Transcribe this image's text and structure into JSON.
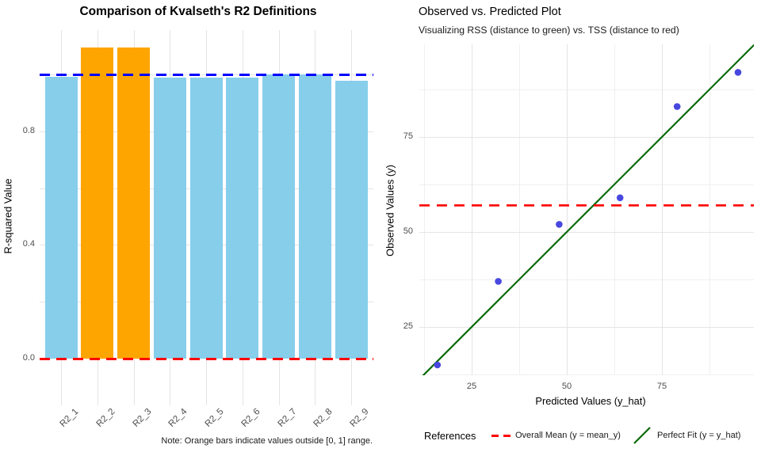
{
  "figure": {
    "background": "#FFFFFF"
  },
  "chart_data": [
    {
      "type": "bar",
      "title": "Comparison of Kvalseth's R2 Definitions",
      "ylabel": "R-squared Value",
      "xlabel": "",
      "caption": "Note: Orange bars indicate values outside [0, 1] range.",
      "categories": [
        "R2_1",
        "R2_2",
        "R2_3",
        "R2_4",
        "R2_5",
        "R2_6",
        "R2_7",
        "R2_8",
        "R2_9"
      ],
      "values": [
        0.993,
        1.095,
        1.095,
        0.99,
        0.988,
        0.988,
        1.0,
        1.0,
        0.978
      ],
      "outlier_indices": [
        1,
        2
      ],
      "yticks": [
        0.0,
        0.4,
        0.8
      ],
      "grid_y": [
        0.2,
        0.4,
        0.6,
        0.8,
        1.0
      ],
      "ylim": [
        -0.16,
        1.15
      ],
      "grid": true,
      "legend": false,
      "reference_lines": [
        {
          "y": 1.0,
          "style": "dashed",
          "color": "#0000FF",
          "meaning": "upper bound of [0,1]"
        },
        {
          "y": 0.0,
          "style": "dashed",
          "color": "#FF0000",
          "meaning": "lower bound of [0,1]"
        }
      ],
      "colors": {
        "bar": "#87CEEB",
        "bar_outlier": "#FFA500",
        "grid": "#E4E4E4",
        "tick_text": "#4D4D4D"
      }
    },
    {
      "type": "scatter",
      "title": "Observed vs. Predicted Plot",
      "subtitle": "Visualizing RSS (distance to green) vs. TSS (distance to red)",
      "xlabel": "Predicted Values (y_hat)",
      "ylabel": "Observed Values (y)",
      "points": [
        [
          16,
          15
        ],
        [
          32,
          37
        ],
        [
          48,
          52
        ],
        [
          64,
          59
        ],
        [
          79,
          83
        ],
        [
          95,
          92
        ]
      ],
      "point_color": "#4848DF",
      "xticks": [
        25,
        50,
        75
      ],
      "yticks": [
        25,
        50,
        75
      ],
      "xlim": [
        11.3,
        99.2
      ],
      "ylim": [
        12.3,
        99.4
      ],
      "grid": true,
      "mean_line": {
        "y": 57,
        "color": "#FF0000",
        "style": "dashed",
        "label": "Overall Mean (y = mean_y)"
      },
      "identity_line": {
        "color": "#0A6A0A",
        "style": "solid",
        "label": "Perfect Fit (y = y_hat)"
      },
      "legend_title": "References",
      "legend_position": "bottom",
      "colors": {
        "grid": "#E4E4E4",
        "grid_minor": "#F0F0F0",
        "tick_text": "#4D4D4D"
      }
    }
  ]
}
